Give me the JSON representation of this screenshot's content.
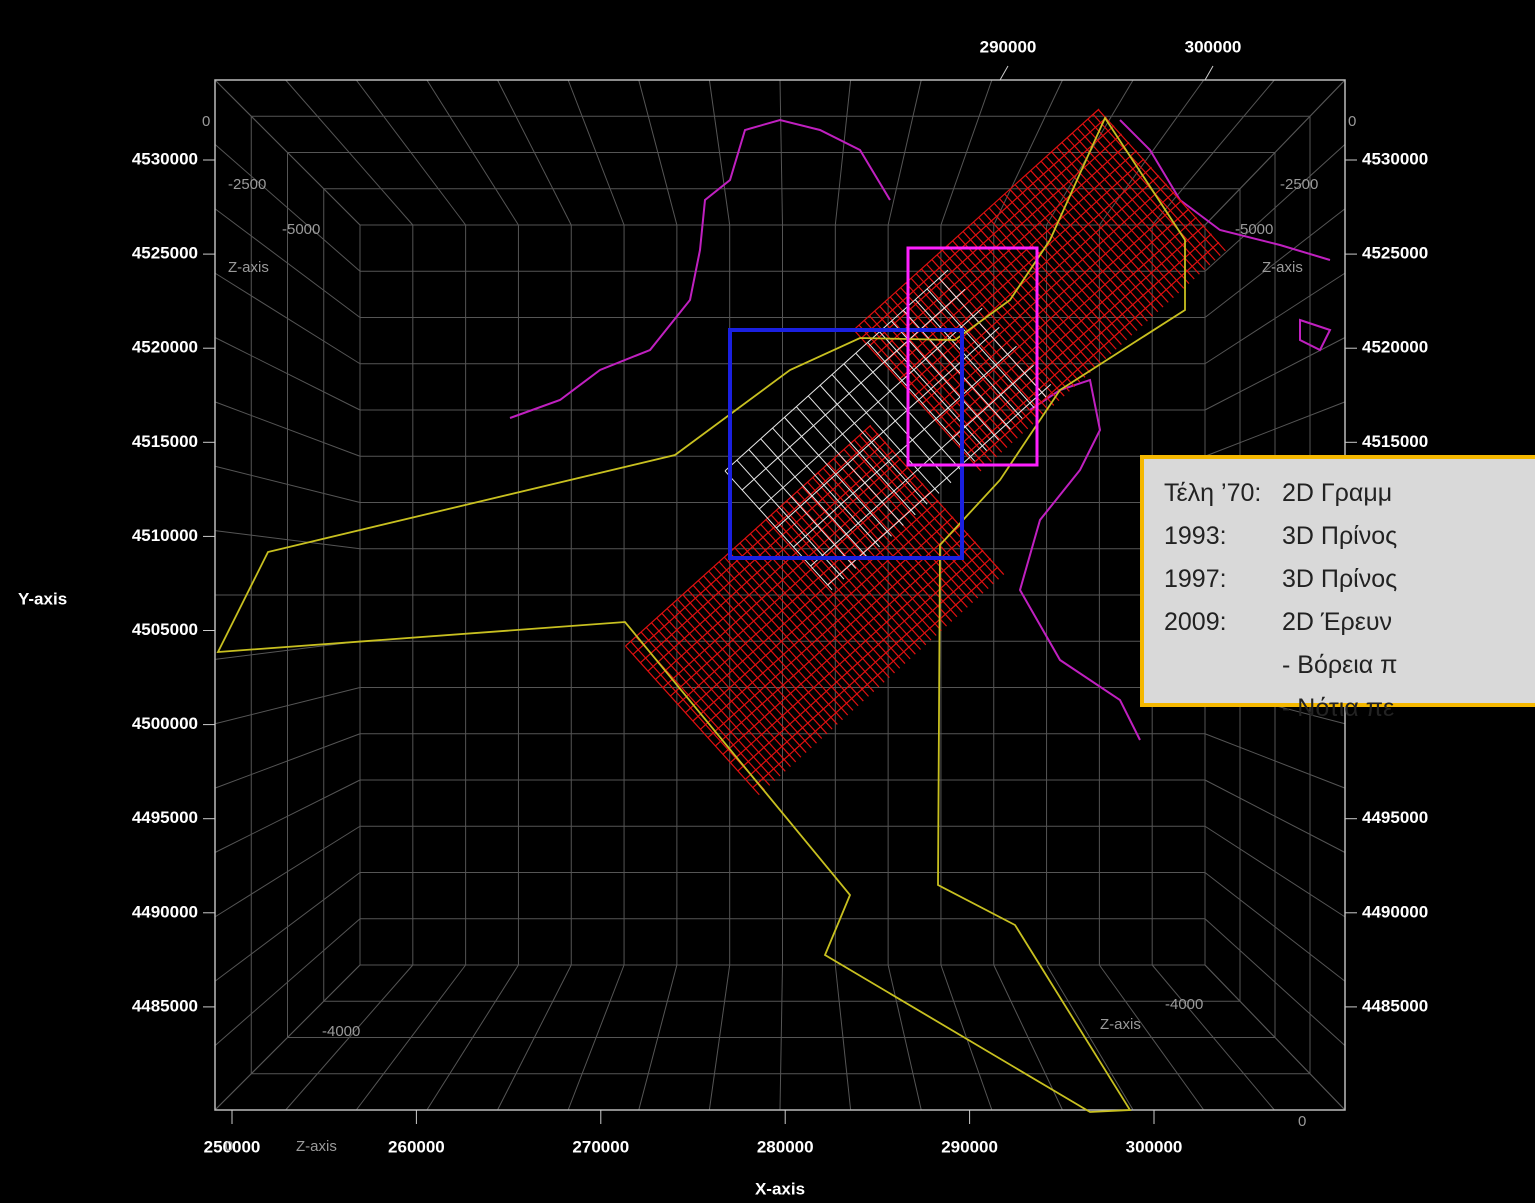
{
  "axes": {
    "x_label": "X-axis",
    "y_label": "Y-axis",
    "x_ticks_bottom": [
      250000,
      260000,
      270000,
      280000,
      290000,
      300000
    ],
    "x_ticks_top": [
      290000,
      300000
    ],
    "y_ticks_left": [
      4530000,
      4525000,
      4520000,
      4515000,
      4510000,
      4505000,
      4500000,
      4495000,
      4490000,
      4485000
    ],
    "y_ticks_right": [
      4530000,
      4525000,
      4520000,
      4515000,
      4495000,
      4490000,
      4485000
    ],
    "z_labels": [
      {
        "text": "0",
        "pos": "left-top"
      },
      {
        "text": "-2500",
        "pos": "left-1"
      },
      {
        "text": "-5000",
        "pos": "left-2"
      },
      {
        "text": "Z-axis",
        "pos": "left-3"
      },
      {
        "text": "0",
        "pos": "right-top"
      },
      {
        "text": "-2500",
        "pos": "right-1"
      },
      {
        "text": "-5000",
        "pos": "right-2"
      },
      {
        "text": "Z-axis",
        "pos": "right-3"
      },
      {
        "text": "-4000",
        "pos": "bottom-left"
      },
      {
        "text": "Z-axis",
        "pos": "bottom-left-label"
      },
      {
        "text": "-4000",
        "pos": "bottom-right"
      },
      {
        "text": "Z-axis",
        "pos": "bottom-right-label"
      },
      {
        "text": "0",
        "pos": "bottom-right-corner"
      },
      {
        "text": "0",
        "pos": "bottom-left-corner"
      }
    ]
  },
  "legend": {
    "rows": [
      [
        "Τέλη ’70:",
        "2D Γραμμ"
      ],
      [
        "1993:",
        "3D Πρίνος"
      ],
      [
        "1997:",
        "3D Πρίνος"
      ],
      [
        "2009:",
        "2D  Έρευν"
      ],
      [
        "",
        "- Βόρεια π"
      ],
      [
        "",
        "- Νότια πε"
      ]
    ]
  }
}
